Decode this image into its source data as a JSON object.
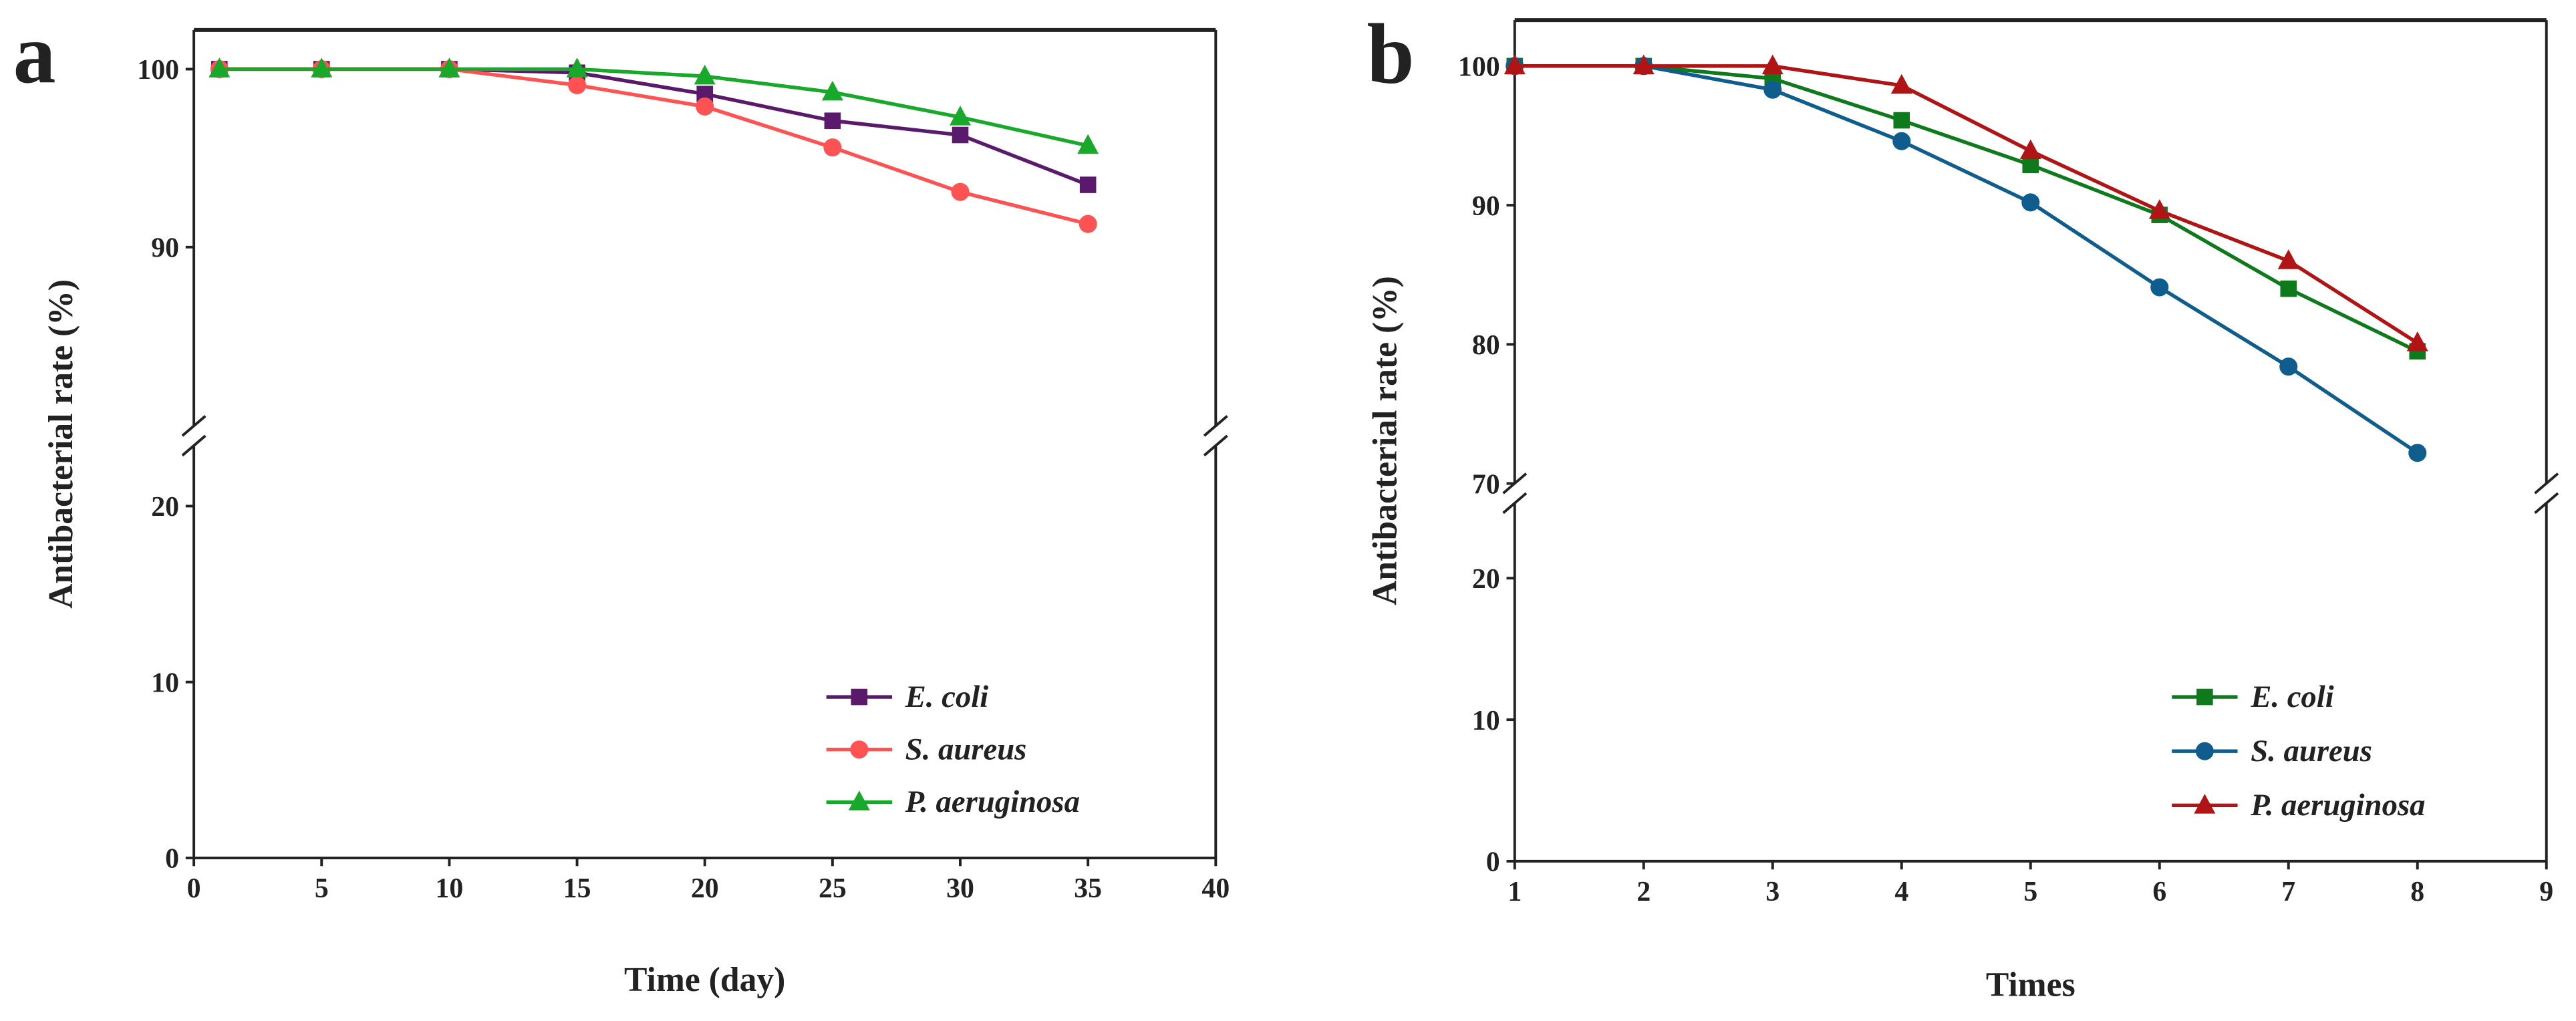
{
  "chart_data": [
    {
      "panel_label": "a",
      "type": "line",
      "xlabel": "Time (day)",
      "ylabel": "Antibacterial rate (%)",
      "xlim": [
        0,
        40
      ],
      "xticks": [
        0,
        5,
        10,
        15,
        20,
        25,
        30,
        35,
        40
      ],
      "y_axis_break": true,
      "y_segments": [
        {
          "range": [
            0,
            24
          ],
          "ticks": [
            0,
            10,
            20
          ]
        },
        {
          "range": [
            79.4,
            102.2
          ],
          "ticks": [
            90,
            100
          ]
        }
      ],
      "legend_position": "bottom-right",
      "x": [
        1,
        5,
        10,
        15,
        20,
        25,
        30,
        35
      ],
      "series": [
        {
          "name": "E. coli",
          "marker": "square",
          "color": "#5a1a6c",
          "values": [
            100,
            100,
            100,
            99.8,
            98.6,
            97.1,
            96.3,
            93.5
          ]
        },
        {
          "name": "S. aureus",
          "marker": "circle",
          "color": "#ff5252",
          "values": [
            100,
            100,
            100,
            99.1,
            97.9,
            95.6,
            93.1,
            91.3
          ]
        },
        {
          "name": "P. aeruginosa",
          "marker": "triangle",
          "color": "#18a82a",
          "values": [
            100,
            100,
            100,
            100,
            99.6,
            98.7,
            97.3,
            95.7
          ]
        }
      ]
    },
    {
      "panel_label": "b",
      "type": "line",
      "xlabel": "Times",
      "ylabel": "Antibacterial rate (%)",
      "xlim": [
        1,
        9
      ],
      "xticks": [
        1,
        2,
        3,
        4,
        5,
        6,
        7,
        8,
        9
      ],
      "y_axis_break": true,
      "y_segments": [
        {
          "range": [
            0,
            26
          ],
          "ticks": [
            0,
            10,
            20
          ]
        },
        {
          "range": [
            69.3,
            103.3
          ],
          "ticks": [
            70,
            80,
            90,
            100
          ]
        }
      ],
      "legend_position": "bottom-right",
      "x": [
        1,
        2,
        3,
        4,
        5,
        6,
        7,
        8
      ],
      "series": [
        {
          "name": "E. coli",
          "marker": "square",
          "color": "#0e7a1c",
          "values": [
            100,
            100,
            99.1,
            96.1,
            92.9,
            89.3,
            84.0,
            79.5
          ]
        },
        {
          "name": "S. aureus",
          "marker": "circle",
          "color": "#0f5d8c",
          "values": [
            100,
            100,
            98.3,
            94.6,
            90.2,
            84.1,
            78.4,
            72.2
          ]
        },
        {
          "name": "P. aeruginosa",
          "marker": "triangle",
          "color": "#b01414",
          "values": [
            100,
            100,
            100,
            98.6,
            93.9,
            89.6,
            86.0,
            80.1
          ]
        }
      ]
    }
  ]
}
